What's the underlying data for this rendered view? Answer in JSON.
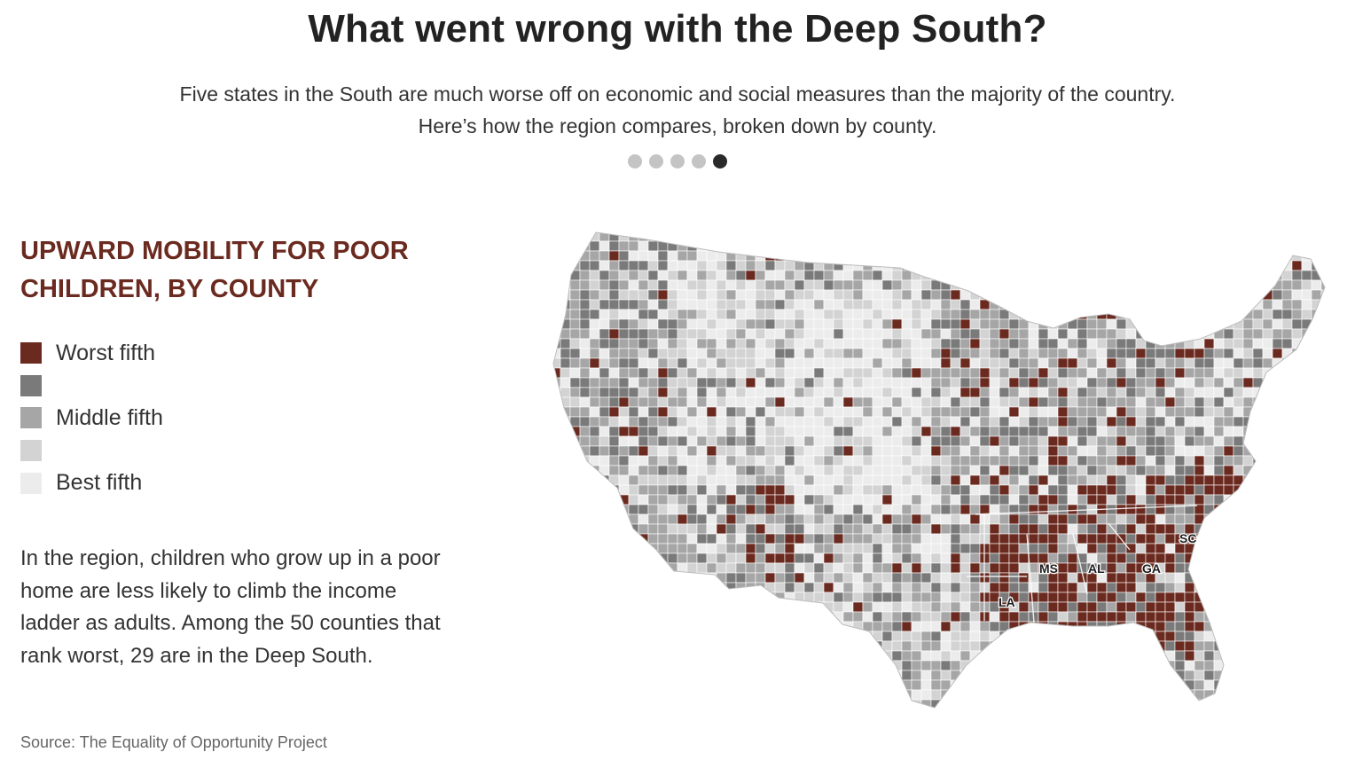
{
  "headline": "What went wrong with the Deep South?",
  "dek": {
    "line1": "Five states in the South are much worse off on economic and social measures than the majority of the country.",
    "line2": "Here’s how the region compares, broken down by county."
  },
  "pager": {
    "total": 5,
    "active_index": 4
  },
  "panel": {
    "title_line1": "UPWARD MOBILITY FOR POOR",
    "title_line2": "CHILDREN, BY COUNTY"
  },
  "legend": [
    {
      "label": "Worst fifth",
      "color": "#6b2a1f"
    },
    {
      "label": "",
      "color": "#7a7a7a"
    },
    {
      "label": "Middle fifth",
      "color": "#a6a6a6"
    },
    {
      "label": "",
      "color": "#d3d3d3"
    },
    {
      "label": "Best fifth",
      "color": "#ececec"
    }
  ],
  "body": "In the region, children who grow up in a poor home are less likely to climb the income ladder as adults. Among the 50 counties that rank worst, 29 are in the Deep South.",
  "source": "Source: The Equality of Opportunity Project",
  "map": {
    "state_labels": [
      "MS",
      "AL",
      "GA",
      "SC",
      "LA"
    ],
    "highlight_color": "#6b2a1f"
  }
}
